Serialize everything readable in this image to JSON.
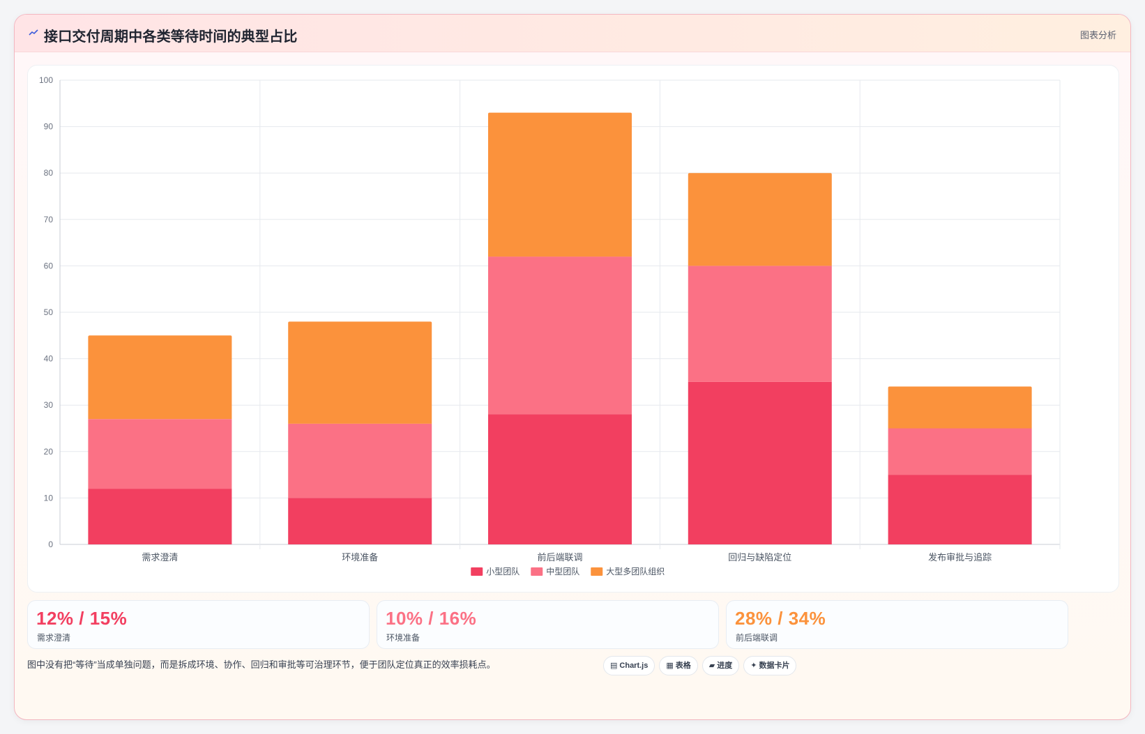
{
  "header": {
    "icon": "chart-line-icon",
    "title": "接口交付周期中各类等待时间的典型占比",
    "tag": "图表分析"
  },
  "chart_data": {
    "type": "bar",
    "stacked": true,
    "categories": [
      "需求澄清",
      "环境准备",
      "前后端联调",
      "回归与缺陷定位",
      "发布审批与追踪"
    ],
    "series": [
      {
        "name": "小型团队",
        "color": "#f23f60",
        "values": [
          12,
          10,
          28,
          35,
          15
        ]
      },
      {
        "name": "中型团队",
        "color": "#fb7185",
        "values": [
          15,
          16,
          34,
          25,
          10
        ]
      },
      {
        "name": "大型多团队组织",
        "color": "#fb923c",
        "values": [
          18,
          22,
          31,
          20,
          9
        ]
      }
    ],
    "ylim": [
      0,
      100
    ],
    "yticks": [
      0,
      10,
      20,
      30,
      40,
      50,
      60,
      70,
      80,
      90,
      100
    ],
    "grid": true,
    "legend_position": "bottom"
  },
  "stats": [
    {
      "value": "12% / 15%",
      "label": "需求澄清",
      "color": "#f23f60"
    },
    {
      "value": "10% / 16%",
      "label": "环境准备",
      "color": "#fb7185"
    },
    {
      "value": "28% / 34%",
      "label": "前后端联调",
      "color": "#fb923c"
    }
  ],
  "footer": {
    "note": "图中没有把“等待”当成单独问题，而是拆成环境、协作、回归和审批等可治理环节，便于团队定位真正的效率损耗点。",
    "badges": [
      {
        "icon": "chart-icon",
        "glyph": "▤",
        "label": "Chart.js"
      },
      {
        "icon": "table-icon",
        "glyph": "▦",
        "label": "表格"
      },
      {
        "icon": "progress-icon",
        "glyph": "▰",
        "label": "进度"
      },
      {
        "icon": "sparkle-icon",
        "glyph": "✦",
        "label": "数据卡片"
      }
    ]
  }
}
